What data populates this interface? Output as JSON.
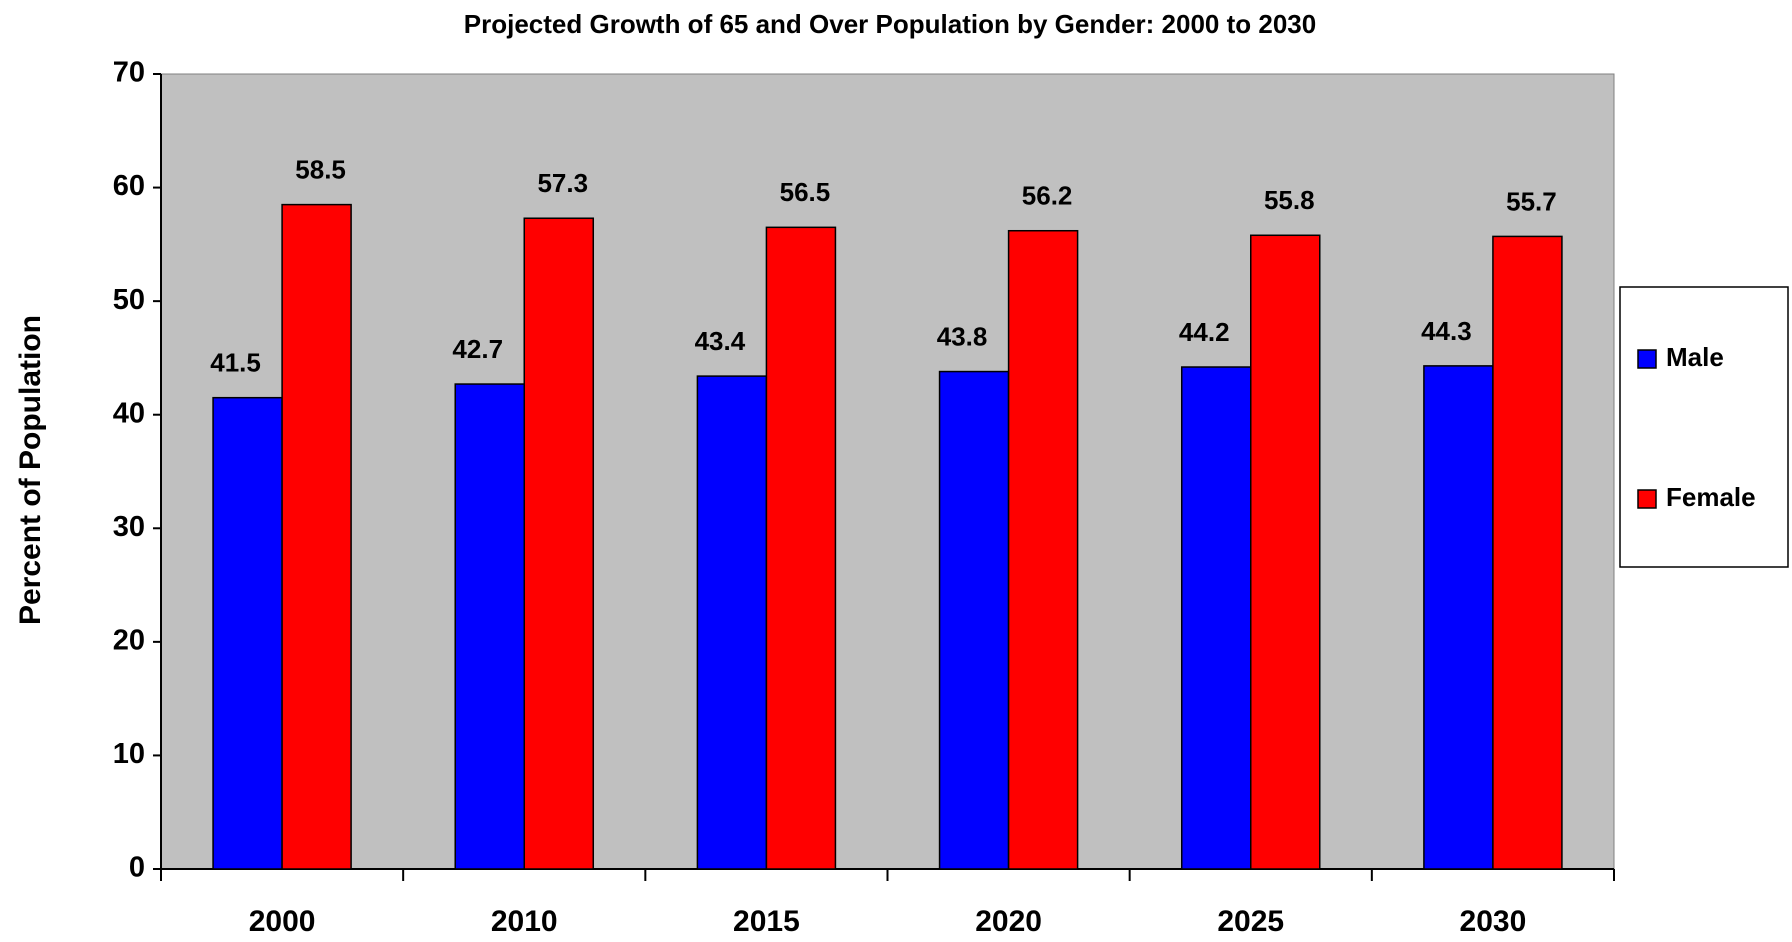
{
  "chart_data": {
    "type": "bar",
    "title": "Projected Growth of 65 and Over Population by Gender: 2000 to 2030",
    "y_label": "Percent of Population",
    "categories": [
      "2000",
      "2010",
      "2015",
      "2020",
      "2025",
      "2030"
    ],
    "series": [
      {
        "name": "Male",
        "color": "#0000ff",
        "values": [
          41.5,
          42.7,
          43.4,
          43.8,
          44.2,
          44.3
        ]
      },
      {
        "name": "Female",
        "color": "#ff0000",
        "values": [
          58.5,
          57.3,
          56.5,
          56.2,
          55.8,
          55.7
        ]
      }
    ],
    "ylim": [
      0,
      70
    ],
    "yticks": [
      0,
      10,
      20,
      30,
      40,
      50,
      60,
      70
    ],
    "plot_background": "#c0c0c0",
    "legend": "right"
  }
}
